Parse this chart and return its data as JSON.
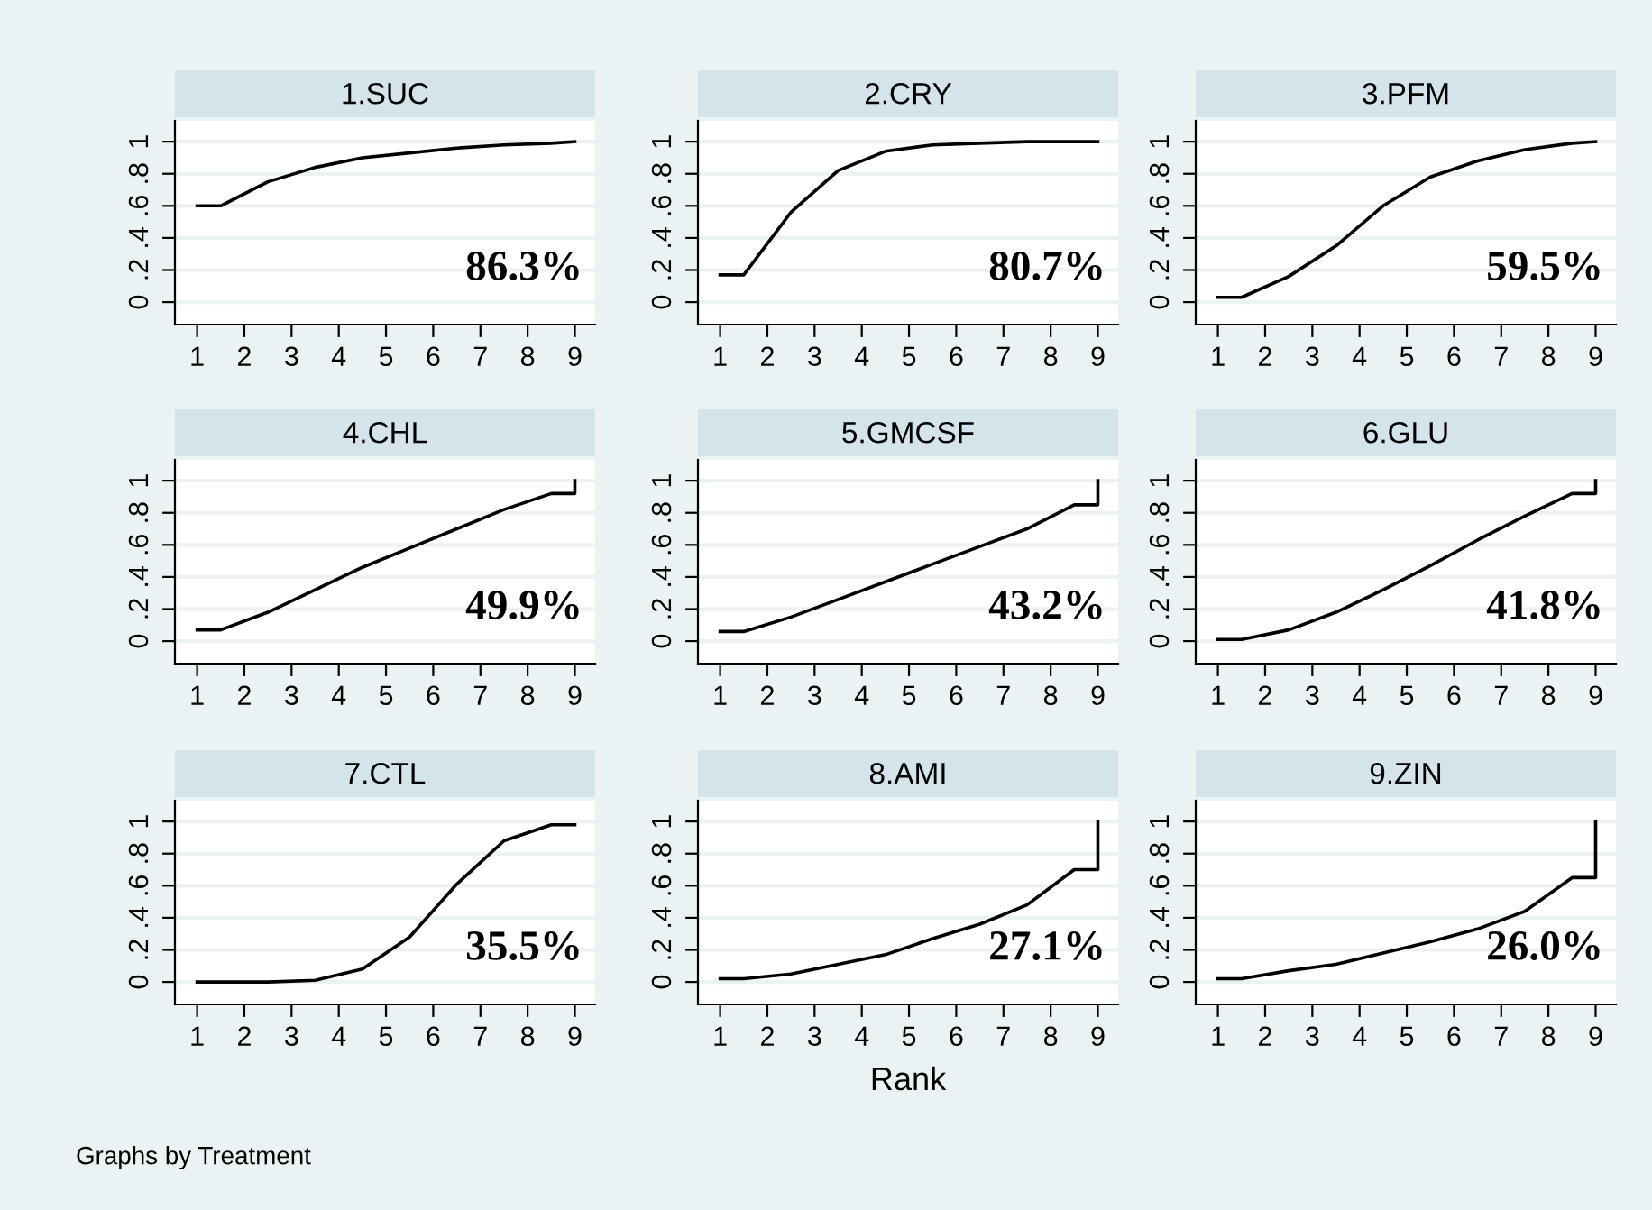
{
  "chart_data": [
    {
      "type": "line",
      "title": "1.SUC",
      "series": [
        {
          "color": "#000000",
          "x": [
            1,
            1.5,
            2.5,
            3.5,
            4.5,
            5.5,
            6.5,
            7.5,
            8.5,
            9
          ],
          "values": [
            0.6,
            0.6,
            0.75,
            0.84,
            0.9,
            0.93,
            0.96,
            0.98,
            0.99,
            1.0
          ]
        }
      ],
      "xlim": [
        0.53,
        9.43
      ],
      "ylim": [
        -0.14,
        1.13
      ],
      "xticks": [
        1,
        2,
        3,
        4,
        5,
        6,
        7,
        8,
        9
      ],
      "yticks": [
        0,
        {
          "value": 0.2,
          "label": ".2"
        },
        {
          "value": 0.4,
          "label": ".4"
        },
        {
          "value": 0.6,
          "label": ".6"
        },
        {
          "value": 0.8,
          "label": ".8"
        },
        1
      ],
      "grid": "y",
      "annotations": [
        "86.3%"
      ]
    },
    {
      "type": "line",
      "title": "2.CRY",
      "series": [
        {
          "color": "#000000",
          "x": [
            1,
            1.5,
            2.5,
            3.5,
            4.5,
            5.5,
            6.5,
            7.5,
            8.5,
            9
          ],
          "values": [
            0.17,
            0.17,
            0.56,
            0.82,
            0.94,
            0.98,
            0.99,
            1.0,
            1.0,
            1.0
          ]
        }
      ],
      "xlim": [
        0.53,
        9.43
      ],
      "ylim": [
        -0.14,
        1.13
      ],
      "xticks": [
        1,
        2,
        3,
        4,
        5,
        6,
        7,
        8,
        9
      ],
      "yticks": [
        0,
        {
          "value": 0.2,
          "label": ".2"
        },
        {
          "value": 0.4,
          "label": ".4"
        },
        {
          "value": 0.6,
          "label": ".6"
        },
        {
          "value": 0.8,
          "label": ".8"
        },
        1
      ],
      "grid": "y",
      "annotations": [
        "80.7%"
      ]
    },
    {
      "type": "line",
      "title": "3.PFM",
      "series": [
        {
          "color": "#000000",
          "x": [
            1,
            1.5,
            2.5,
            3.5,
            4.5,
            5.5,
            6.5,
            7.5,
            8.5,
            9
          ],
          "values": [
            0.03,
            0.03,
            0.16,
            0.35,
            0.6,
            0.78,
            0.88,
            0.95,
            0.99,
            1.0
          ]
        }
      ],
      "xlim": [
        0.53,
        9.43
      ],
      "ylim": [
        -0.14,
        1.13
      ],
      "xticks": [
        1,
        2,
        3,
        4,
        5,
        6,
        7,
        8,
        9
      ],
      "yticks": [
        0,
        {
          "value": 0.2,
          "label": ".2"
        },
        {
          "value": 0.4,
          "label": ".4"
        },
        {
          "value": 0.6,
          "label": ".6"
        },
        {
          "value": 0.8,
          "label": ".8"
        },
        1
      ],
      "grid": "y",
      "annotations": [
        "59.5%"
      ]
    },
    {
      "type": "line",
      "title": "4.CHL",
      "series": [
        {
          "color": "#000000",
          "x": [
            1,
            1.5,
            2.5,
            3.5,
            4.5,
            5.5,
            6.5,
            7.5,
            8.5,
            9,
            9
          ],
          "values": [
            0.07,
            0.07,
            0.18,
            0.32,
            0.46,
            0.58,
            0.7,
            0.82,
            0.92,
            0.92,
            1.0
          ]
        }
      ],
      "xlim": [
        0.53,
        9.43
      ],
      "ylim": [
        -0.14,
        1.13
      ],
      "xticks": [
        1,
        2,
        3,
        4,
        5,
        6,
        7,
        8,
        9
      ],
      "yticks": [
        0,
        {
          "value": 0.2,
          "label": ".2"
        },
        {
          "value": 0.4,
          "label": ".4"
        },
        {
          "value": 0.6,
          "label": ".6"
        },
        {
          "value": 0.8,
          "label": ".8"
        },
        1
      ],
      "grid": "y",
      "annotations": [
        "49.9%"
      ]
    },
    {
      "type": "line",
      "title": "5.GMCSF",
      "series": [
        {
          "color": "#000000",
          "x": [
            1,
            1.5,
            2.5,
            3.5,
            4.5,
            5.5,
            6.5,
            7.5,
            8.5,
            9,
            9
          ],
          "values": [
            0.06,
            0.06,
            0.15,
            0.26,
            0.37,
            0.48,
            0.59,
            0.7,
            0.85,
            0.85,
            1.0
          ]
        }
      ],
      "xlim": [
        0.53,
        9.43
      ],
      "ylim": [
        -0.14,
        1.13
      ],
      "xticks": [
        1,
        2,
        3,
        4,
        5,
        6,
        7,
        8,
        9
      ],
      "yticks": [
        0,
        {
          "value": 0.2,
          "label": ".2"
        },
        {
          "value": 0.4,
          "label": ".4"
        },
        {
          "value": 0.6,
          "label": ".6"
        },
        {
          "value": 0.8,
          "label": ".8"
        },
        1
      ],
      "grid": "y",
      "annotations": [
        "43.2%"
      ]
    },
    {
      "type": "line",
      "title": "6.GLU",
      "series": [
        {
          "color": "#000000",
          "x": [
            1,
            1.5,
            2.5,
            3.5,
            4.5,
            5.5,
            6.5,
            7.5,
            8.5,
            9,
            9
          ],
          "values": [
            0.01,
            0.01,
            0.07,
            0.18,
            0.32,
            0.47,
            0.63,
            0.78,
            0.92,
            0.92,
            1.0
          ]
        }
      ],
      "xlim": [
        0.53,
        9.43
      ],
      "ylim": [
        -0.14,
        1.13
      ],
      "xticks": [
        1,
        2,
        3,
        4,
        5,
        6,
        7,
        8,
        9
      ],
      "yticks": [
        0,
        {
          "value": 0.2,
          "label": ".2"
        },
        {
          "value": 0.4,
          "label": ".4"
        },
        {
          "value": 0.6,
          "label": ".6"
        },
        {
          "value": 0.8,
          "label": ".8"
        },
        1
      ],
      "grid": "y",
      "annotations": [
        "41.8%"
      ]
    },
    {
      "type": "line",
      "title": "7.CTL",
      "series": [
        {
          "color": "#000000",
          "x": [
            1,
            1.5,
            2.5,
            3.5,
            4.5,
            5.5,
            6.5,
            7.5,
            8.5,
            9
          ],
          "values": [
            0.0,
            0.0,
            0.0,
            0.01,
            0.08,
            0.28,
            0.61,
            0.88,
            0.98,
            0.98
          ]
        }
      ],
      "xlim": [
        0.53,
        9.43
      ],
      "ylim": [
        -0.14,
        1.13
      ],
      "xticks": [
        1,
        2,
        3,
        4,
        5,
        6,
        7,
        8,
        9
      ],
      "yticks": [
        0,
        {
          "value": 0.2,
          "label": ".2"
        },
        {
          "value": 0.4,
          "label": ".4"
        },
        {
          "value": 0.6,
          "label": ".6"
        },
        {
          "value": 0.8,
          "label": ".8"
        },
        1
      ],
      "grid": "y",
      "annotations": [
        "35.5%",
        "Graphs by Treatment"
      ]
    },
    {
      "type": "line",
      "title": "8.AMI",
      "xlabel": "Rank",
      "series": [
        {
          "color": "#000000",
          "x": [
            1,
            1.5,
            2.5,
            3.5,
            4.5,
            5.5,
            6.5,
            7.5,
            8.5,
            9,
            9
          ],
          "values": [
            0.02,
            0.02,
            0.05,
            0.11,
            0.17,
            0.27,
            0.36,
            0.48,
            0.7,
            0.7,
            1.0
          ]
        }
      ],
      "xlim": [
        0.53,
        9.43
      ],
      "ylim": [
        -0.14,
        1.13
      ],
      "xticks": [
        1,
        2,
        3,
        4,
        5,
        6,
        7,
        8,
        9
      ],
      "yticks": [
        0,
        {
          "value": 0.2,
          "label": ".2"
        },
        {
          "value": 0.4,
          "label": ".4"
        },
        {
          "value": 0.6,
          "label": ".6"
        },
        {
          "value": 0.8,
          "label": ".8"
        },
        1
      ],
      "grid": "y",
      "annotations": [
        "27.1%"
      ]
    },
    {
      "type": "line",
      "title": "9.ZIN",
      "series": [
        {
          "color": "#000000",
          "x": [
            1,
            1.5,
            2.5,
            3.5,
            4.5,
            5.5,
            6.5,
            7.5,
            8.5,
            9,
            9
          ],
          "values": [
            0.02,
            0.02,
            0.07,
            0.11,
            0.18,
            0.25,
            0.33,
            0.44,
            0.65,
            0.65,
            1.0
          ]
        }
      ],
      "xlim": [
        0.53,
        9.43
      ],
      "ylim": [
        -0.14,
        1.13
      ],
      "xticks": [
        1,
        2,
        3,
        4,
        5,
        6,
        7,
        8,
        9
      ],
      "yticks": [
        0,
        {
          "value": 0.2,
          "label": ".2"
        },
        {
          "value": 0.4,
          "label": ".4"
        },
        {
          "value": 0.6,
          "label": ".6"
        },
        {
          "value": 0.8,
          "label": ".8"
        },
        1
      ],
      "grid": "y",
      "annotations": [
        "26.0%"
      ]
    }
  ]
}
